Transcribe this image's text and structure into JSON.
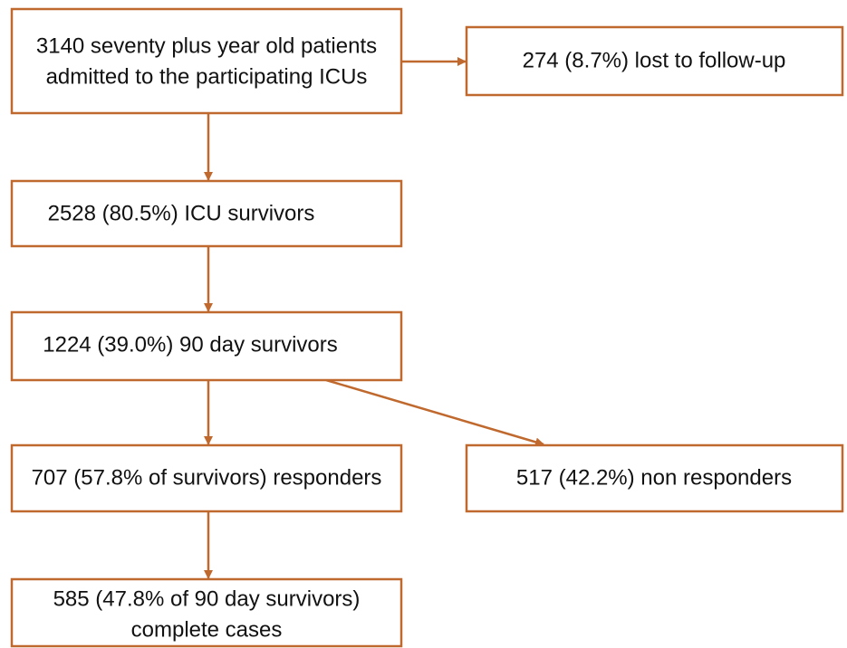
{
  "nodes": [
    {
      "lines": [
        "3140 seventy plus year old patients",
        "admitted to the participating ICUs"
      ]
    },
    {
      "lines": [
        "274 (8.7%) lost to follow-up"
      ]
    },
    {
      "lines": [
        "2528 (80.5%) ICU survivors"
      ]
    },
    {
      "lines": [
        "1224 (39.0%) 90 day survivors"
      ]
    },
    {
      "lines": [
        "707 (57.8% of survivors) responders"
      ]
    },
    {
      "lines": [
        "517 (42.2%) non responders"
      ]
    },
    {
      "lines": [
        "585 (47.8% of 90 day survivors)",
        "complete cases"
      ]
    }
  ]
}
